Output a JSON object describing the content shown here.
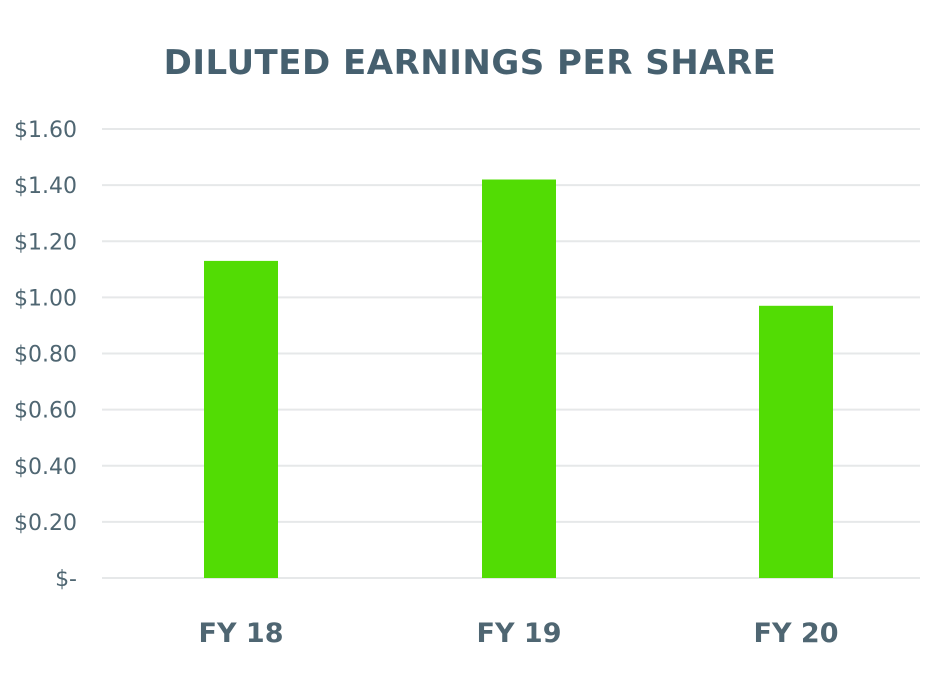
{
  "colors": {
    "title": "#46606f",
    "tick_text": "#4f6672",
    "grid": "#e6e8e9",
    "bar": "#52dc04",
    "background": "#ffffff"
  },
  "chart_data": {
    "type": "bar",
    "title": "DILUTED EARNINGS PER SHARE",
    "xlabel": "",
    "ylabel": "",
    "categories": [
      "FY 18",
      "FY 19",
      "FY 20"
    ],
    "values": [
      1.13,
      1.42,
      0.97
    ],
    "ylim": [
      0,
      1.6
    ],
    "y_ticks": [
      0,
      0.2,
      0.4,
      0.6,
      0.8,
      1.0,
      1.2,
      1.4,
      1.6
    ],
    "y_tick_labels": [
      "$-",
      "$0.20",
      "$0.40",
      "$0.60",
      "$0.80",
      "$1.00",
      "$1.20",
      "$1.40",
      "$1.60"
    ],
    "grid": true,
    "legend": "none"
  }
}
